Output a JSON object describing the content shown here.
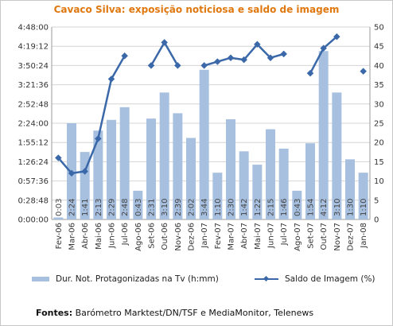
{
  "chart_data": {
    "type": "bar+line",
    "title": "Cavaco Silva: exposição noticiosa e saldo de imagem",
    "categories": [
      "Fev-06",
      "Mar-06",
      "Abr-06",
      "Mai-06",
      "Jun-06",
      "Jul-06",
      "Ago-06",
      "Set-06",
      "Out-06",
      "Nov-06",
      "Dez-06",
      "Jan-07",
      "Fev-07",
      "Mar-07",
      "Abr-07",
      "Mai-07",
      "Jun-07",
      "Jul-07",
      "Ago-07",
      "Set-07",
      "Out-07",
      "Nov-07",
      "Dez-07",
      "Jan-08"
    ],
    "series": [
      {
        "name": "Dur. Not. Protagonizadas na Tv (h:mm)",
        "type": "bar",
        "axis": "left",
        "labels": [
          "0:03",
          "2:24",
          "1:41",
          "2:13",
          "2:29",
          "2:48",
          "0:43",
          "2:31",
          "3:10",
          "2:39",
          "2:02",
          "3:44",
          "1:10",
          "2:30",
          "1:42",
          "1:22",
          "2:15",
          "1:46",
          "0:43",
          "1:54",
          "4:12",
          "3:10",
          "1:30",
          "1:10"
        ],
        "values_minutes": [
          3,
          144,
          101,
          133,
          149,
          168,
          43,
          151,
          190,
          159,
          122,
          224,
          70,
          150,
          102,
          82,
          135,
          106,
          43,
          114,
          252,
          190,
          90,
          70
        ]
      },
      {
        "name": "Saldo de Imagem (%)",
        "type": "line",
        "axis": "right",
        "values": [
          16,
          12,
          12.5,
          21,
          36.5,
          42.5,
          null,
          40,
          46,
          40,
          null,
          40,
          41,
          42,
          41.5,
          45.5,
          42,
          43,
          null,
          38,
          44.5,
          47.5,
          null,
          38.5
        ]
      }
    ],
    "left_axis": {
      "ticks": [
        "0:00:00",
        "0:28:48",
        "0:57:36",
        "1:26:24",
        "1:55:12",
        "2:24:00",
        "2:52:48",
        "3:21:36",
        "3:50:24",
        "4:19:12",
        "4:48:00"
      ],
      "ylim_minutes": [
        0,
        288
      ]
    },
    "right_axis": {
      "ticks": [
        "0",
        "5",
        "10",
        "15",
        "20",
        "25",
        "30",
        "35",
        "40",
        "45",
        "50"
      ],
      "ylim": [
        0,
        50
      ]
    },
    "grid": true,
    "legend_position": "bottom",
    "colors": {
      "bar": "#a8c0e0",
      "line": "#3a68a8",
      "title": "#e07810"
    }
  },
  "source": {
    "label": "Fontes:",
    "text": " Barómetro Marktest/DN/TSF e MediaMonitor, Telenews"
  }
}
